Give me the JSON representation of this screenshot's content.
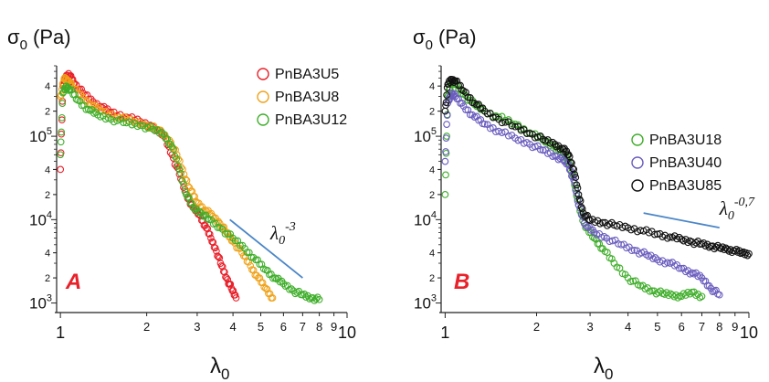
{
  "chart_data": [
    {
      "type": "scatter",
      "panel_label": "A",
      "ylabel_main": "σ",
      "ylabel_sub": "0",
      "ylabel_unit": " (Pa)",
      "xlabel_main": "λ",
      "xlabel_sub": "0",
      "x_scale": "log",
      "y_scale": "log",
      "xlim": [
        0.97,
        10
      ],
      "ylim": [
        850,
        700000
      ],
      "x_ticks": [
        {
          "value": 1,
          "label": "1",
          "major": true
        },
        {
          "value": 2,
          "label": "2",
          "major": false
        },
        {
          "value": 3,
          "label": "3",
          "major": false
        },
        {
          "value": 4,
          "label": "4",
          "major": false
        },
        {
          "value": 5,
          "label": "5",
          "major": false
        },
        {
          "value": 6,
          "label": "6",
          "major": false
        },
        {
          "value": 7,
          "label": "7",
          "major": false
        },
        {
          "value": 8,
          "label": "8",
          "major": false
        },
        {
          "value": 9,
          "label": "9",
          "major": false
        },
        {
          "value": 10,
          "label": "10",
          "major": true
        }
      ],
      "y_ticks": [
        {
          "value": 1000,
          "base": "10",
          "exp": "3",
          "major": true
        },
        {
          "value": 2000,
          "label": "2",
          "major": false
        },
        {
          "value": 4000,
          "label": "4",
          "major": false
        },
        {
          "value": 10000,
          "base": "10",
          "exp": "4",
          "major": true
        },
        {
          "value": 20000,
          "label": "2",
          "major": false
        },
        {
          "value": 40000,
          "label": "4",
          "major": false
        },
        {
          "value": 100000,
          "base": "10",
          "exp": "5",
          "major": true
        },
        {
          "value": 200000,
          "label": "2",
          "major": false
        },
        {
          "value": 400000,
          "label": "4",
          "major": false
        }
      ],
      "legend_position": "top-right",
      "series": [
        {
          "name": "PnBA3U5",
          "color": "#e8212a",
          "points": [
            [
              1.0,
              40000
            ],
            [
              1.02,
              400000
            ],
            [
              1.05,
              540000
            ],
            [
              1.08,
              530000
            ],
            [
              1.12,
              430000
            ],
            [
              1.2,
              330000
            ],
            [
              1.3,
              260000
            ],
            [
              1.4,
              220000
            ],
            [
              1.5,
              195000
            ],
            [
              1.7,
              170000
            ],
            [
              1.9,
              150000
            ],
            [
              2.1,
              130000
            ],
            [
              2.3,
              100000
            ],
            [
              2.45,
              60000
            ],
            [
              2.6,
              35000
            ],
            [
              2.75,
              20000
            ],
            [
              2.9,
              14000
            ],
            [
              3.05,
              11500
            ],
            [
              3.2,
              8500
            ],
            [
              3.35,
              6000
            ],
            [
              3.5,
              4200
            ],
            [
              3.65,
              2800
            ],
            [
              3.8,
              2000
            ],
            [
              3.95,
              1500
            ],
            [
              4.1,
              1150
            ]
          ]
        },
        {
          "name": "PnBA3U8",
          "color": "#f0a21a",
          "points": [
            [
              1.0,
              300000
            ],
            [
              1.03,
              490000
            ],
            [
              1.06,
              470000
            ],
            [
              1.1,
              400000
            ],
            [
              1.2,
              290000
            ],
            [
              1.3,
              230000
            ],
            [
              1.4,
              200000
            ],
            [
              1.6,
              170000
            ],
            [
              1.8,
              150000
            ],
            [
              2.0,
              135000
            ],
            [
              2.2,
              120000
            ],
            [
              2.4,
              90000
            ],
            [
              2.55,
              60000
            ],
            [
              2.7,
              35000
            ],
            [
              2.85,
              22000
            ],
            [
              3.0,
              16000
            ],
            [
              3.2,
              13000
            ],
            [
              3.4,
              11000
            ],
            [
              3.6,
              9000
            ],
            [
              3.8,
              7000
            ],
            [
              4.0,
              5500
            ],
            [
              4.3,
              4000
            ],
            [
              4.6,
              2800
            ],
            [
              4.9,
              2000
            ],
            [
              5.2,
              1500
            ],
            [
              5.5,
              1150
            ]
          ]
        },
        {
          "name": "PnBA3U12",
          "color": "#3fae2a",
          "points": [
            [
              1.0,
              60000
            ],
            [
              1.02,
              330000
            ],
            [
              1.05,
              400000
            ],
            [
              1.08,
              360000
            ],
            [
              1.15,
              270000
            ],
            [
              1.25,
              210000
            ],
            [
              1.35,
              180000
            ],
            [
              1.5,
              160000
            ],
            [
              1.7,
              145000
            ],
            [
              1.9,
              135000
            ],
            [
              2.1,
              122000
            ],
            [
              2.3,
              105000
            ],
            [
              2.45,
              75000
            ],
            [
              2.6,
              40000
            ],
            [
              2.75,
              20000
            ],
            [
              2.9,
              14000
            ],
            [
              3.1,
              12000
            ],
            [
              3.3,
              10000
            ],
            [
              3.6,
              8000
            ],
            [
              4.0,
              6000
            ],
            [
              4.4,
              4500
            ],
            [
              4.8,
              3300
            ],
            [
              5.2,
              2500
            ],
            [
              5.6,
              2000
            ],
            [
              6.0,
              1700
            ],
            [
              6.5,
              1400
            ],
            [
              7.0,
              1250
            ],
            [
              7.5,
              1150
            ],
            [
              8.0,
              1100
            ]
          ]
        }
      ],
      "slope_line": {
        "x": [
          3.9,
          7.0
        ],
        "y": [
          10000,
          2000
        ],
        "color": "#4a86c8"
      },
      "annotation": {
        "base": "λ",
        "sub": "0",
        "sup": "-3",
        "x": 5.4,
        "y": 5800
      }
    },
    {
      "type": "scatter",
      "panel_label": "B",
      "ylabel_main": "σ",
      "ylabel_sub": "0",
      "ylabel_unit": " (Pa)",
      "xlabel_main": "λ",
      "xlabel_sub": "0",
      "x_scale": "log",
      "y_scale": "log",
      "xlim": [
        0.97,
        10
      ],
      "ylim": [
        850,
        700000
      ],
      "x_ticks": [
        {
          "value": 1,
          "label": "1",
          "major": true
        },
        {
          "value": 2,
          "label": "2",
          "major": false
        },
        {
          "value": 3,
          "label": "3",
          "major": false
        },
        {
          "value": 4,
          "label": "4",
          "major": false
        },
        {
          "value": 5,
          "label": "5",
          "major": false
        },
        {
          "value": 6,
          "label": "6",
          "major": false
        },
        {
          "value": 7,
          "label": "7",
          "major": false
        },
        {
          "value": 8,
          "label": "8",
          "major": false
        },
        {
          "value": 9,
          "label": "9",
          "major": false
        },
        {
          "value": 10,
          "label": "10",
          "major": true
        }
      ],
      "y_ticks": [
        {
          "value": 1000,
          "base": "10",
          "exp": "3",
          "major": true
        },
        {
          "value": 2000,
          "label": "2",
          "major": false
        },
        {
          "value": 4000,
          "label": "4",
          "major": false
        },
        {
          "value": 10000,
          "base": "10",
          "exp": "4",
          "major": true
        },
        {
          "value": 20000,
          "label": "2",
          "major": false
        },
        {
          "value": 40000,
          "label": "4",
          "major": false
        },
        {
          "value": 100000,
          "base": "10",
          "exp": "5",
          "major": true
        },
        {
          "value": 200000,
          "label": "2",
          "major": false
        },
        {
          "value": 400000,
          "label": "4",
          "major": false
        }
      ],
      "legend_position": "top-right",
      "series": [
        {
          "name": "PnBA3U18",
          "color": "#3fae2a",
          "points": [
            [
              1.0,
              20000
            ],
            [
              1.02,
              300000
            ],
            [
              1.05,
              450000
            ],
            [
              1.08,
              420000
            ],
            [
              1.15,
              320000
            ],
            [
              1.25,
              240000
            ],
            [
              1.35,
              200000
            ],
            [
              1.5,
              170000
            ],
            [
              1.7,
              140000
            ],
            [
              1.9,
              110000
            ],
            [
              2.1,
              90000
            ],
            [
              2.3,
              75000
            ],
            [
              2.45,
              62000
            ],
            [
              2.55,
              50000
            ],
            [
              2.65,
              30000
            ],
            [
              2.75,
              15000
            ],
            [
              2.9,
              8000
            ],
            [
              3.1,
              6000
            ],
            [
              3.3,
              4500
            ],
            [
              3.6,
              3000
            ],
            [
              4.0,
              2000
            ],
            [
              4.4,
              1600
            ],
            [
              4.8,
              1400
            ],
            [
              5.2,
              1300
            ],
            [
              5.6,
              1250
            ],
            [
              6.0,
              1200
            ],
            [
              6.5,
              1350
            ],
            [
              7.0,
              1200
            ]
          ]
        },
        {
          "name": "PnBA3U40",
          "color": "#6a5dbe",
          "points": [
            [
              1.0,
              50000
            ],
            [
              1.02,
              250000
            ],
            [
              1.05,
              330000
            ],
            [
              1.08,
              300000
            ],
            [
              1.15,
              230000
            ],
            [
              1.25,
              170000
            ],
            [
              1.35,
              140000
            ],
            [
              1.5,
              115000
            ],
            [
              1.7,
              95000
            ],
            [
              1.9,
              80000
            ],
            [
              2.1,
              68000
            ],
            [
              2.3,
              58000
            ],
            [
              2.45,
              52000
            ],
            [
              2.55,
              45000
            ],
            [
              2.65,
              30000
            ],
            [
              2.75,
              15000
            ],
            [
              2.9,
              8500
            ],
            [
              3.1,
              7000
            ],
            [
              3.4,
              6000
            ],
            [
              3.8,
              5000
            ],
            [
              4.2,
              4300
            ],
            [
              4.6,
              3800
            ],
            [
              5.0,
              3300
            ],
            [
              5.5,
              3000
            ],
            [
              6.0,
              2600
            ],
            [
              6.5,
              2300
            ],
            [
              7.0,
              2000
            ],
            [
              7.5,
              1500
            ],
            [
              8.0,
              1250
            ]
          ]
        },
        {
          "name": "PnBA3U85",
          "color": "#111111",
          "points": [
            [
              1.0,
              200000
            ],
            [
              1.02,
              420000
            ],
            [
              1.05,
              480000
            ],
            [
              1.08,
              460000
            ],
            [
              1.15,
              350000
            ],
            [
              1.25,
              250000
            ],
            [
              1.35,
              200000
            ],
            [
              1.5,
              160000
            ],
            [
              1.7,
              130000
            ],
            [
              1.9,
              108000
            ],
            [
              2.1,
              92000
            ],
            [
              2.3,
              80000
            ],
            [
              2.45,
              70000
            ],
            [
              2.55,
              60000
            ],
            [
              2.65,
              40000
            ],
            [
              2.75,
              20000
            ],
            [
              2.85,
              12000
            ],
            [
              3.0,
              9800
            ],
            [
              3.3,
              9200
            ],
            [
              3.6,
              8600
            ],
            [
              4.0,
              8000
            ],
            [
              4.5,
              7300
            ],
            [
              5.0,
              6700
            ],
            [
              5.5,
              6200
            ],
            [
              6.0,
              5800
            ],
            [
              6.5,
              5400
            ],
            [
              7.0,
              5100
            ],
            [
              7.5,
              4800
            ],
            [
              8.0,
              4600
            ],
            [
              8.5,
              4400
            ],
            [
              9.0,
              4200
            ],
            [
              9.5,
              4000
            ],
            [
              10.0,
              3900
            ]
          ]
        }
      ],
      "slope_line": {
        "x": [
          4.5,
          8.0
        ],
        "y": [
          12000,
          8000
        ],
        "color": "#4a86c8"
      },
      "annotation": {
        "base": "λ",
        "sub": "0",
        "sup": "-0,7",
        "x": 8.0,
        "y": 11500
      }
    }
  ]
}
